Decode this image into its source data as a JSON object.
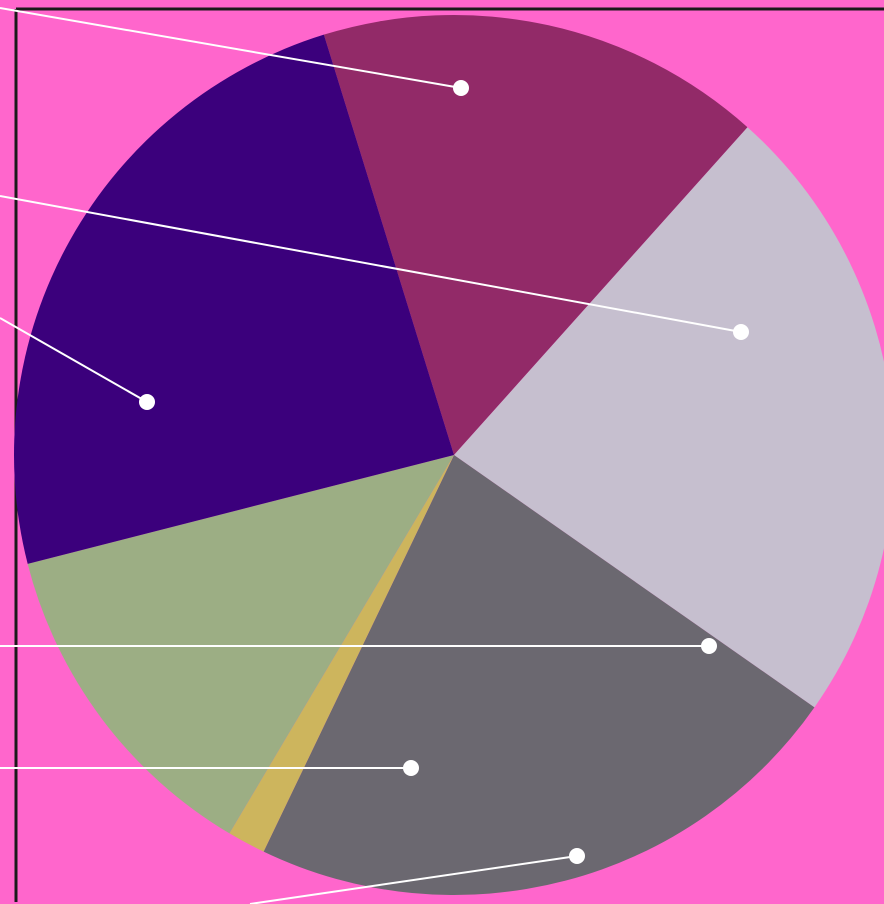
{
  "colors": {
    "background": "#ff66cc",
    "frame": "#1a1a1a",
    "leader": "#ffffff"
  },
  "chart_data": {
    "type": "pie",
    "start_angle_deg": -107.2,
    "direction": "clockwise",
    "slices": [
      {
        "value": 16.4,
        "color": "#922a68"
      },
      {
        "value": 23.1,
        "color": "#c6bfcf"
      },
      {
        "value": 22.4,
        "color": "#6b6870"
      },
      {
        "value": 1.4,
        "color": "#cdb55d"
      },
      {
        "value": 12.5,
        "color": "#9cae84"
      },
      {
        "value": 24.2,
        "color": "#3b007c"
      }
    ],
    "legend": "none",
    "labels_visible": false
  }
}
